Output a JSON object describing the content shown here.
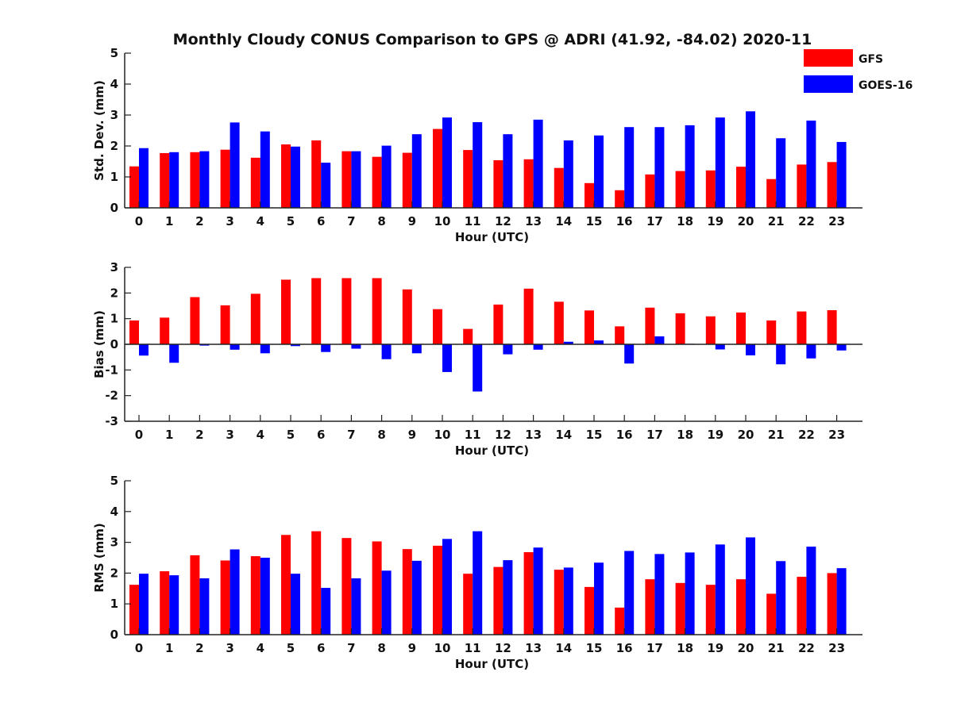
{
  "figure": {
    "title": "Monthly Cloudy CONUS Comparison to GPS @ ADRI (41.92, -84.02) 2020-11",
    "legend": [
      {
        "name": "GFS",
        "color": "#ff0000"
      },
      {
        "name": "GOES-16",
        "color": "#0000ff"
      }
    ]
  },
  "chart_data": [
    {
      "type": "bar",
      "xlabel": "Hour (UTC)",
      "ylabel": "Std. Dev. (mm)",
      "ylim": [
        0,
        5
      ],
      "yticks": [
        0,
        1,
        2,
        3,
        4,
        5
      ],
      "categories": [
        "0",
        "1",
        "2",
        "3",
        "4",
        "5",
        "6",
        "7",
        "8",
        "9",
        "10",
        "11",
        "12",
        "13",
        "14",
        "15",
        "16",
        "17",
        "18",
        "19",
        "20",
        "21",
        "22",
        "23"
      ],
      "legend_placement": "top-right",
      "series": [
        {
          "name": "GFS",
          "color": "#ff0000",
          "values": [
            1.34,
            1.77,
            1.8,
            1.88,
            1.62,
            2.05,
            2.18,
            1.83,
            1.65,
            1.78,
            2.55,
            1.87,
            1.54,
            1.57,
            1.29,
            0.8,
            0.57,
            1.08,
            1.19,
            1.21,
            1.33,
            0.93,
            1.4,
            1.48
          ]
        },
        {
          "name": "GOES-16",
          "color": "#0000ff",
          "values": [
            1.93,
            1.8,
            1.83,
            2.76,
            2.47,
            1.98,
            1.46,
            1.83,
            2.01,
            2.38,
            2.92,
            2.77,
            2.38,
            2.85,
            2.18,
            2.34,
            2.61,
            2.61,
            2.67,
            2.92,
            3.12,
            2.25,
            2.82,
            2.13
          ]
        }
      ]
    },
    {
      "type": "bar",
      "xlabel": "Hour (UTC)",
      "ylabel": "Bias (mm)",
      "ylim": [
        -3,
        3
      ],
      "yticks": [
        -3,
        -2,
        -1,
        0,
        1,
        2,
        3
      ],
      "categories": [
        "0",
        "1",
        "2",
        "3",
        "4",
        "5",
        "6",
        "7",
        "8",
        "9",
        "10",
        "11",
        "12",
        "13",
        "14",
        "15",
        "16",
        "17",
        "18",
        "19",
        "20",
        "21",
        "22",
        "23"
      ],
      "series": [
        {
          "name": "GFS",
          "color": "#ff0000",
          "values": [
            0.93,
            1.04,
            1.84,
            1.52,
            1.97,
            2.52,
            2.58,
            2.58,
            2.58,
            2.14,
            1.37,
            0.6,
            1.55,
            2.17,
            1.66,
            1.32,
            0.7,
            1.43,
            1.21,
            1.09,
            1.24,
            0.93,
            1.28,
            1.33
          ]
        },
        {
          "name": "GOES-16",
          "color": "#0000ff",
          "values": [
            -0.44,
            -0.72,
            -0.05,
            -0.21,
            -0.35,
            -0.07,
            -0.3,
            -0.17,
            -0.58,
            -0.35,
            -1.08,
            -1.84,
            -0.39,
            -0.21,
            0.1,
            0.15,
            -0.75,
            0.31,
            0.02,
            -0.2,
            -0.43,
            -0.78,
            -0.55,
            -0.24
          ]
        }
      ]
    },
    {
      "type": "bar",
      "xlabel": "Hour (UTC)",
      "ylabel": "RMS (mm)",
      "ylim": [
        0,
        5
      ],
      "yticks": [
        0,
        1,
        2,
        3,
        4,
        5
      ],
      "categories": [
        "0",
        "1",
        "2",
        "3",
        "4",
        "5",
        "6",
        "7",
        "8",
        "9",
        "10",
        "11",
        "12",
        "13",
        "14",
        "15",
        "16",
        "17",
        "18",
        "19",
        "20",
        "21",
        "22",
        "23"
      ],
      "series": [
        {
          "name": "GFS",
          "color": "#ff0000",
          "values": [
            1.62,
            2.06,
            2.58,
            2.41,
            2.55,
            3.24,
            3.36,
            3.14,
            3.03,
            2.78,
            2.89,
            1.98,
            2.2,
            2.68,
            2.11,
            1.55,
            0.88,
            1.8,
            1.68,
            1.62,
            1.8,
            1.33,
            1.88,
            2.0
          ]
        },
        {
          "name": "GOES-16",
          "color": "#0000ff",
          "values": [
            1.98,
            1.93,
            1.83,
            2.77,
            2.5,
            1.98,
            1.52,
            1.83,
            2.08,
            2.4,
            3.11,
            3.36,
            2.42,
            2.83,
            2.18,
            2.34,
            2.72,
            2.62,
            2.67,
            2.93,
            3.16,
            2.39,
            2.86,
            2.16
          ]
        }
      ]
    }
  ]
}
